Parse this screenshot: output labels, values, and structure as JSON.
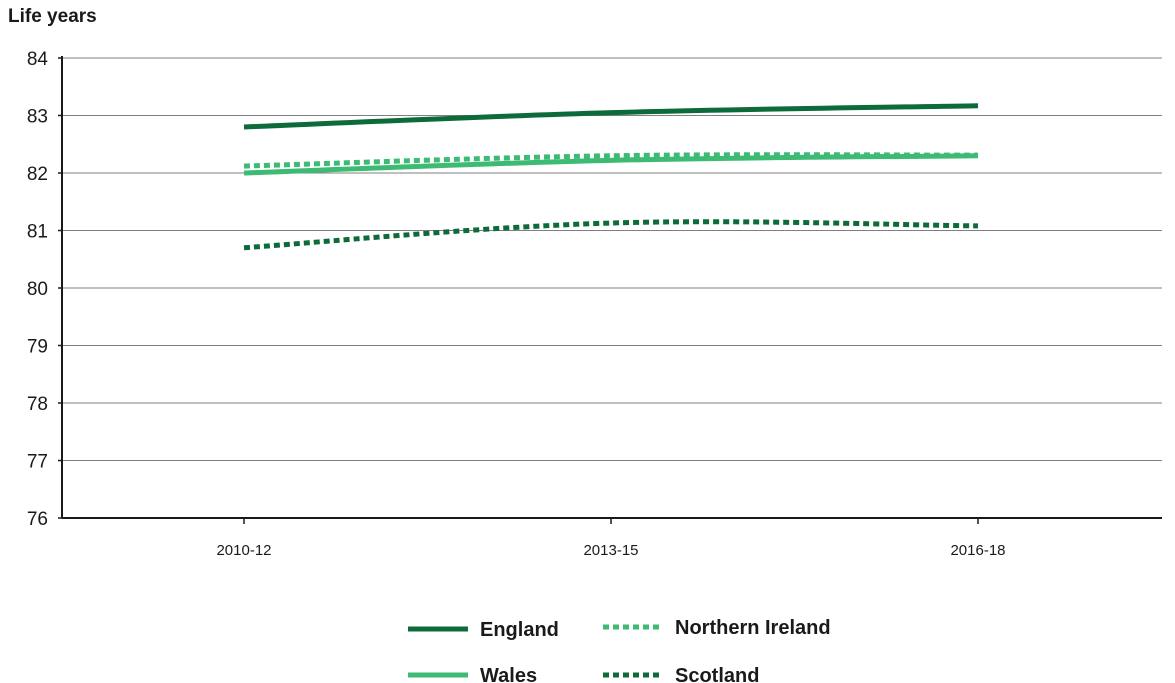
{
  "chart_data": {
    "type": "line",
    "title": "",
    "xlabel": "",
    "ylabel": "Life years",
    "ylim": [
      76,
      84
    ],
    "yticks": [
      "76",
      "77",
      "78",
      "79",
      "80",
      "81",
      "82",
      "83",
      "84"
    ],
    "categories": [
      "2010-12",
      "2013-15",
      "2016-18"
    ],
    "grid": "horizontal",
    "legend_position": "bottom-center",
    "series": [
      {
        "name": "England",
        "values": [
          82.8,
          83.05,
          83.17
        ],
        "color": "#0d6b3a",
        "dashed": false
      },
      {
        "name": "Northern Ireland",
        "values": [
          82.12,
          82.3,
          82.31
        ],
        "color": "#3dbb74",
        "dashed": true
      },
      {
        "name": "Wales",
        "values": [
          82.0,
          82.22,
          82.3
        ],
        "color": "#3dbb74",
        "dashed": false
      },
      {
        "name": "Scotland",
        "values": [
          80.7,
          81.13,
          81.08
        ],
        "color": "#0d6b3a",
        "dashed": true
      }
    ]
  }
}
